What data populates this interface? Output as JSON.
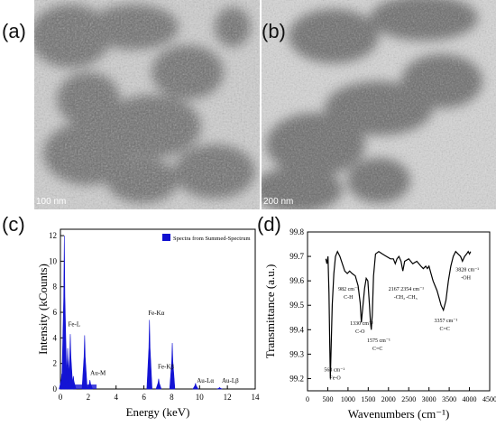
{
  "panels": {
    "a": {
      "letter": "(a)",
      "scale_bar": "100 nm"
    },
    "b": {
      "letter": "(b)",
      "scale_bar": "200 nm"
    },
    "c": {
      "letter": "(c)"
    },
    "d": {
      "letter": "(d)"
    }
  },
  "chart_data": [
    {
      "type": "bar",
      "panel": "c",
      "xlabel": "Energy (keV)",
      "ylabel": "Intensity (kCounts)",
      "xlim": [
        0,
        14
      ],
      "ylim": [
        0,
        12.5
      ],
      "xticks": [
        "0",
        "2",
        "4",
        "6",
        "8",
        "10",
        "12",
        "14"
      ],
      "yticks": [
        "0",
        "2",
        "4",
        "6",
        "8",
        "10",
        "12"
      ],
      "legend": {
        "label": "Spectra from Summed-Spectrum",
        "color": "#1010d0",
        "position": "top-right"
      },
      "series": [
        {
          "name": "Spectra from Summed-Spectrum",
          "color": "#1414d4",
          "peaks": [
            {
              "x": 0.1,
              "y": 1.2
            },
            {
              "x": 0.28,
              "y": 12.0
            },
            {
              "x": 0.52,
              "y": 3.2
            },
            {
              "x": 0.71,
              "y": 4.3
            },
            {
              "x": 0.93,
              "y": 1.0
            },
            {
              "x": 1.74,
              "y": 4.2
            },
            {
              "x": 2.12,
              "y": 0.7
            },
            {
              "x": 6.4,
              "y": 5.4
            },
            {
              "x": 7.06,
              "y": 0.8
            },
            {
              "x": 8.04,
              "y": 3.6
            },
            {
              "x": 9.71,
              "y": 0.45
            },
            {
              "x": 11.44,
              "y": 0.12
            }
          ]
        }
      ],
      "annotations": [
        {
          "text": "Fe-L",
          "x": 0.55,
          "y": 4.9
        },
        {
          "text": "Au-M",
          "x": 2.15,
          "y": 1.1
        },
        {
          "text": "Fe-Kα",
          "x": 6.3,
          "y": 5.8
        },
        {
          "text": "Fe-Kβ",
          "x": 7.0,
          "y": 1.6
        },
        {
          "text": "Au-Lα",
          "x": 9.8,
          "y": 0.5
        },
        {
          "text": "Au-Lβ",
          "x": 11.6,
          "y": 0.5
        }
      ]
    },
    {
      "type": "line",
      "panel": "d",
      "xlabel": "Wavenumbers (cm⁻¹)",
      "ylabel": "Transmittance (a.u.)",
      "xlim": [
        0,
        4500
      ],
      "ylim": [
        99.15,
        99.8
      ],
      "xticks": [
        "0",
        "500",
        "1000",
        "1500",
        "2000",
        "2500",
        "3000",
        "3500",
        "4000",
        "4500"
      ],
      "yticks": [
        "99.2",
        "99.3",
        "99.4",
        "99.5",
        "99.6",
        "99.7",
        "99.8"
      ],
      "series": [
        {
          "color": "#000000",
          "x": [
            452,
            480,
            505,
            530,
            548,
            563,
            580,
            610,
            650,
            690,
            740,
            800,
            860,
            920,
            982,
            1040,
            1100,
            1180,
            1250,
            1300,
            1330,
            1370,
            1410,
            1450,
            1490,
            1530,
            1555,
            1575,
            1600,
            1630,
            1680,
            1760,
            1850,
            1950,
            2050,
            2120,
            2167,
            2210,
            2260,
            2310,
            2354,
            2400,
            2500,
            2600,
            2700,
            2800,
            2860,
            2920,
            2960,
            3000,
            3050,
            3100,
            3150,
            3200,
            3250,
            3300,
            3357,
            3420,
            3480,
            3540,
            3600,
            3660,
            3720,
            3780,
            3828,
            3880,
            3930,
            3970,
            4000,
            4030
          ],
          "y": [
            99.69,
            99.67,
            99.7,
            99.55,
            99.35,
            99.2,
            99.3,
            99.5,
            99.63,
            99.7,
            99.72,
            99.7,
            99.67,
            99.64,
            99.63,
            99.64,
            99.63,
            99.62,
            99.58,
            99.51,
            99.43,
            99.5,
            99.57,
            99.61,
            99.6,
            99.5,
            99.43,
            99.4,
            99.46,
            99.62,
            99.71,
            99.72,
            99.71,
            99.7,
            99.69,
            99.69,
            99.67,
            99.69,
            99.7,
            99.68,
            99.64,
            99.68,
            99.69,
            99.67,
            99.68,
            99.66,
            99.65,
            99.66,
            99.65,
            99.66,
            99.63,
            99.6,
            99.58,
            99.56,
            99.53,
            99.5,
            99.48,
            99.52,
            99.6,
            99.66,
            99.7,
            99.72,
            99.71,
            99.7,
            99.68,
            99.7,
            99.71,
            99.72,
            99.71,
            99.72
          ]
        }
      ],
      "annotations": [
        {
          "text": "563 cm⁻¹",
          "sub": "Fe-O",
          "x": 410,
          "y": 99.23
        },
        {
          "text": "982 cm⁻¹",
          "sub": "C-H",
          "x": 760,
          "y": 99.56
        },
        {
          "text": "1330 cm⁻¹",
          "sub": "C-O",
          "x": 1050,
          "y": 99.42
        },
        {
          "text": "1575 cm⁻¹",
          "sub": "C=C",
          "x": 1470,
          "y": 99.35
        },
        {
          "text": "2167",
          "sub": "-CH₂",
          "x": 2000,
          "y": 99.56
        },
        {
          "text": "2354 cm⁻¹",
          "sub": "-CH₃",
          "x": 2300,
          "y": 99.56
        },
        {
          "text": "3357 cm⁻¹",
          "sub": "C=C",
          "x": 3130,
          "y": 99.43
        },
        {
          "text": "3828 cm⁻¹",
          "sub": "-OH",
          "x": 3660,
          "y": 99.64
        }
      ]
    }
  ]
}
